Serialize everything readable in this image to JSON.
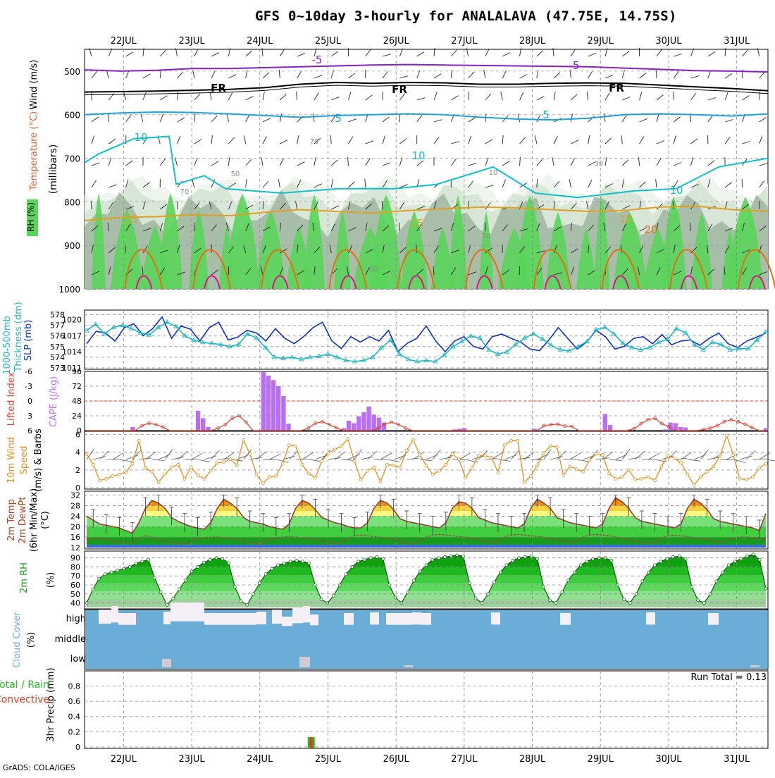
{
  "title": "GFS 0~10day 3-hourly for ANALALAVA (47.75E, 14.75S)",
  "credit": "GrADS: COLA/IGES",
  "dates": [
    "22JUL",
    "23JUL",
    "24JUL",
    "25JUL",
    "26JUL",
    "27JUL",
    "28JUL",
    "29JUL",
    "30JUL",
    "31JUL"
  ],
  "colors": {
    "rh_green": "#5ad45a",
    "rh_mid": "#9ab09a",
    "rh_light": "#d8e6d8",
    "t_minus5": "#8a1fc2",
    "t_fr": "#000000",
    "t_5": "#1fa0e0",
    "t_10": "#12c0c8",
    "t_15": "#e0a020",
    "t_20": "#e07010",
    "t_25": "#e0108a",
    "slp": "#1030c0",
    "thick": "#20b8c0",
    "li": "#e04030",
    "cape": "#b86ff0",
    "wind10": "#e09018",
    "temp": "#904030",
    "rh2m": "#12a012",
    "cloud": "#6aaed8",
    "precip_total": "#20c020",
    "precip_conv": "#e04020"
  },
  "chart_data": [
    {
      "type": "heatmap",
      "panel": "upper-air",
      "ylabel": "(millibars)",
      "side_labels": [
        "RH (%)",
        "Temperature (°C)",
        "Wind (m/s)"
      ],
      "y_ticks": [
        500,
        600,
        700,
        800,
        900,
        1000
      ],
      "ylim": [
        450,
        1000
      ],
      "contour_labels": [
        "-5",
        "-5",
        "FR",
        "FR",
        "FR",
        "5",
        "5",
        "10",
        "10",
        "10",
        "15",
        "15",
        "15",
        "20",
        "10",
        "30",
        "50",
        "50",
        "50",
        "70",
        "70"
      ],
      "series": [
        {
          "name": "-5",
          "y": [
            497,
            500,
            498,
            494,
            494,
            492,
            490,
            488,
            486,
            485,
            486,
            487,
            488,
            489,
            490,
            493,
            496,
            499,
            500,
            502
          ]
        },
        {
          "name": "FR",
          "y": [
            548,
            547,
            546,
            544,
            542,
            538,
            530,
            526,
            528,
            526,
            527,
            530,
            530,
            528,
            527,
            528,
            532,
            536,
            540,
            545
          ]
        },
        {
          "name": "5",
          "y": [
            600,
            596,
            594,
            595,
            598,
            602,
            606,
            602,
            600,
            598,
            600,
            606,
            610,
            612,
            608,
            600,
            598,
            600,
            603,
            598
          ]
        },
        {
          "name": "15",
          "y": [
            843,
            836,
            834,
            830,
            832,
            824,
            818,
            822,
            826,
            820,
            816,
            812,
            814,
            818,
            822,
            820,
            812,
            810,
            818,
            822
          ]
        }
      ]
    },
    {
      "type": "line",
      "panel": "slp-thickness",
      "ylabel": "SLP (mb)",
      "ylabel2": "Thickness (dm)",
      "ylabel2_main": "1000-500mb",
      "y_ticks_left": [
        573,
        574,
        575,
        576,
        577,
        578
      ],
      "y_ticks_right": [
        1020,
        1017,
        1014,
        1011
      ],
      "series": [
        {
          "name": "SLP",
          "values": [
            1015.5,
            1017.8,
            1017.5,
            1016.0,
            1018.5,
            1019.2,
            1017.0,
            1018.3,
            1020.5,
            1016.5,
            1018.8,
            1018.2,
            1016.0,
            1018.5,
            1019.5,
            1016.2,
            1016.7,
            1018.0,
            1017.5,
            1016.0,
            1018.3,
            1016.5,
            1015.5,
            1016.8,
            1018.5,
            1019.5,
            1016.0,
            1014.6,
            1016.8,
            1015.8,
            1016.8,
            1016.0,
            1018.0,
            1014.0,
            1015.6,
            1016.5,
            1018.8,
            1016.0,
            1014.0,
            1016.0,
            1016.8,
            1015.0,
            1014.5,
            1016.8,
            1017.3,
            1016.5,
            1015.8,
            1014.5,
            1014.2,
            1016.2,
            1018.5,
            1016.5,
            1014.5,
            1015.8,
            1018.0,
            1016.8,
            1014.5,
            1015.0,
            1016.5,
            1016.8,
            1015.5,
            1017.2,
            1015.3,
            1016.0,
            1016.2,
            1015.2,
            1016.5,
            1017.5,
            1015.5,
            1014.8,
            1016.0,
            1016.7,
            1017.5
          ]
        },
        {
          "name": "Thickness",
          "values": [
            576.5,
            577.1,
            576.2,
            576.8,
            577.0,
            576.7,
            576.3,
            576.1,
            576.8,
            577.3,
            576.9,
            576.0,
            575.6,
            575.4,
            575.3,
            575.2,
            575.0,
            575.2,
            576.2,
            575.8,
            574.9,
            574.0,
            573.9,
            574.0,
            573.8,
            574.0,
            574.1,
            574.3,
            574.0,
            573.7,
            573.6,
            573.7,
            574.0,
            574.9,
            575.6,
            574.3,
            573.8,
            573.6,
            573.7,
            573.6,
            574.2,
            575.0,
            575.5,
            576.0,
            575.8,
            574.7,
            574.3,
            574.5,
            575.2,
            575.8,
            576.2,
            575.7,
            575.1,
            574.7,
            574.6,
            575.0,
            575.5,
            576.6,
            576.8,
            576.2,
            575.3,
            574.9,
            574.7,
            574.9,
            575.4,
            575.7,
            576.7,
            576.3,
            575.2,
            574.7,
            575.4,
            575.2,
            574.7,
            574.8,
            574.8,
            575.6,
            576.4
          ]
        }
      ]
    },
    {
      "type": "bar",
      "panel": "cape-li",
      "ylabel": "CAPE (J/kg)",
      "ylabel2": "Lifted Index",
      "y_ticks_cape": [
        0,
        24,
        48,
        72,
        96
      ],
      "y_ticks_li": [
        6,
        3,
        0,
        -3,
        -6
      ],
      "cape_values": [
        0,
        0,
        0,
        0,
        0,
        0,
        0,
        0,
        0,
        6,
        0,
        0,
        0,
        0,
        0,
        0,
        0,
        0,
        0,
        0,
        0,
        0,
        32,
        20,
        6,
        0,
        0,
        0,
        0,
        0,
        0,
        0,
        0,
        0,
        0,
        95,
        89,
        82,
        72,
        56,
        11,
        0,
        0,
        0,
        0,
        0,
        0,
        0,
        0,
        0,
        0,
        4,
        16,
        12,
        23,
        30,
        39,
        26,
        21,
        13,
        0,
        0,
        0,
        0,
        0,
        0,
        0,
        0,
        0,
        0,
        0,
        0,
        0,
        2,
        3,
        4,
        0,
        0,
        0,
        0,
        0,
        0,
        0,
        0,
        0,
        0,
        0,
        0,
        0,
        3,
        1,
        0,
        0,
        0,
        0,
        0,
        0,
        0,
        0,
        0,
        0,
        0,
        0,
        27,
        9,
        0,
        0,
        0,
        0,
        0,
        0,
        0,
        0,
        0,
        0,
        2,
        13,
        12,
        6,
        5,
        0,
        0,
        0,
        0,
        0,
        0,
        0,
        0,
        0,
        0,
        0,
        0,
        0,
        0,
        0,
        4
      ],
      "li_values": [
        6,
        6,
        6,
        6,
        6,
        6,
        6,
        6,
        5,
        4.5,
        4.8,
        5.3,
        6,
        6,
        6,
        6,
        6,
        6,
        6,
        5.5,
        4.8,
        3.5,
        3,
        4.3,
        6,
        6,
        6,
        6,
        6,
        6,
        6,
        6,
        5.5,
        4.5,
        4.2,
        4.8,
        5.4,
        6,
        6,
        6,
        6,
        6,
        5.6,
        4.7,
        4.3,
        4.8,
        5.5,
        6,
        6,
        6,
        6,
        6,
        6,
        6,
        6,
        6,
        6,
        6,
        6,
        6,
        6,
        6,
        6,
        6,
        6,
        6,
        5,
        4.8,
        4.7,
        5.1,
        5.2,
        6,
        6,
        6,
        6,
        6,
        6,
        6,
        6,
        5.6,
        4.6,
        3.8,
        3.5,
        4.6,
        5.2,
        6,
        6,
        6,
        6,
        5.8,
        5.5,
        5.0,
        4.2,
        3.8,
        4.2,
        4.7,
        5.4,
        6,
        6
      ]
    },
    {
      "type": "line",
      "panel": "wind10m",
      "ylabel": "10m Wind Speed (m/s) & Barbs",
      "ylabel_parts": [
        "10m Wind",
        "Speed",
        "(m/s) & Barbs"
      ],
      "y_ticks": [
        0,
        2,
        4,
        6
      ],
      "ylim": [
        0,
        6
      ],
      "series": [
        {
          "name": "Speed",
          "values": [
            3.8,
            2.6,
            0.8,
            1.0,
            1.3,
            1.5,
            1.7,
            2.7,
            5.3,
            2.2,
            1.8,
            0.6,
            1.5,
            2.3,
            2.6,
            1.0,
            2.3,
            1.4,
            1.0,
            1.9,
            2.8,
            2.9,
            3.2,
            2.5,
            5.4,
            3.8,
            1.5,
            0.5,
            1.2,
            1.3,
            2.7,
            4.8,
            4.7,
            2.6,
            1.6,
            1.1,
            3.0,
            3.9,
            4.3,
            4.7,
            5.5,
            3.0,
            0.9,
            1.9,
            2.3,
            0.7,
            2.6,
            2.5,
            2.3,
            4.2,
            5.4,
            3.7,
            2.5,
            1.5,
            1.9,
            2.6,
            3.8,
            3.2,
            1.1,
            2.2,
            3.6,
            3.6,
            3.4,
            1.7,
            4.8,
            5.3,
            5.3,
            0.6,
            1.3,
            2.5,
            3.9,
            4.7,
            4.6,
            1.4,
            2.4,
            2.1,
            1.8,
            3.1,
            3.8,
            3.7,
            1.6,
            1.0,
            1.2,
            2.0,
            0.9,
            1.0,
            1.2,
            0.8,
            2.4,
            3.6,
            3.3,
            2.8,
            1.5,
            0.3,
            1.2,
            1.8,
            2.4,
            3.6,
            5.9,
            3.7,
            1.0,
            0.9,
            1.2,
            2.2,
            2.7
          ]
        }
      ]
    },
    {
      "type": "area",
      "panel": "temp2m",
      "ylabel": "2m Temp 2m DewPt (6hr Min/Max) (°C)",
      "ylabel_parts": [
        "2m Temp",
        "2m DewPt",
        "(6hr Min/Max)",
        "(°C)"
      ],
      "y_ticks": [
        12,
        16,
        20,
        24,
        28,
        32
      ],
      "ylim": [
        12,
        32
      ],
      "temp": [
        24.0,
        22.5,
        21.0,
        20.5,
        20.0,
        19.5,
        18.5,
        17.5,
        21.5,
        27.0,
        30.0,
        29.0,
        27.0,
        23.5,
        22.0,
        21.0,
        20.0,
        19.5,
        19.0,
        21.5,
        27.0,
        30.5,
        29.0,
        27.0,
        23.5,
        22.0,
        21.5,
        21.0,
        20.0,
        19.5,
        19.0,
        21.0,
        27.0,
        30.0,
        29.0,
        26.5,
        23.5,
        22.5,
        21.5,
        21.0,
        20.0,
        19.5,
        19.5,
        21.5,
        27.0,
        30.0,
        29.0,
        26.5,
        23.0,
        22.0,
        21.5,
        21.0,
        20.5,
        20.0,
        19.5,
        21.5,
        27.0,
        29.5,
        29.0,
        27.0,
        23.5,
        22.5,
        21.5,
        21.0,
        20.5,
        20.0,
        19.5,
        21.0,
        27.0,
        30.5,
        29.0,
        27.0,
        23.5,
        22.5,
        21.5,
        21.0,
        20.5,
        20.0,
        19.5,
        21.0,
        27.0,
        31.0,
        29.5,
        27.0,
        23.5,
        22.0,
        21.5,
        21.0,
        20.5,
        20.0,
        19.5,
        21.0,
        27.0,
        30.5,
        29.0,
        26.5,
        23.0,
        22.0,
        21.5,
        21.0,
        20.5,
        20.0,
        19.5,
        18.5,
        25.0
      ],
      "dewpt": [
        15.0,
        15.5,
        15.5,
        15.0,
        14.5,
        14.0,
        13.8,
        14.0,
        15.5,
        16.5,
        16.0,
        15.0,
        14.5,
        14.0,
        13.8,
        13.5,
        14.5,
        15.5,
        15.8,
        16.0,
        16.0,
        15.8,
        15.5,
        15.0,
        14.5,
        14.0,
        13.5,
        13.8,
        15.0,
        15.8,
        16.0,
        16.2,
        16.0,
        15.8,
        15.5,
        15.0,
        14.5,
        14.0,
        13.5,
        14.0,
        15.5,
        16.5,
        16.8,
        16.5,
        16.2,
        16.0,
        15.5,
        15.0,
        14.5,
        14.0,
        13.5,
        14.5,
        16.0,
        16.8,
        17.0,
        16.8,
        16.5,
        16.2,
        16.0,
        15.5,
        15.0,
        14.5,
        14.0,
        14.5,
        16.0,
        16.8,
        17.0,
        16.8,
        16.5,
        16.2,
        16.0,
        15.5,
        15.0,
        14.5,
        14.0,
        14.5,
        16.0,
        16.8,
        17.0,
        16.8,
        16.5,
        16.0,
        15.5,
        15.0,
        14.5,
        14.0,
        13.8,
        14.0,
        15.5,
        16.5,
        16.8,
        16.5,
        16.2,
        15.8,
        15.5,
        15.0,
        14.5,
        14.0,
        14.5,
        15.5,
        16.0,
        16.0,
        15.8,
        15.5,
        15.0
      ]
    },
    {
      "type": "area",
      "panel": "rh2m",
      "ylabel": "2m RH (%)",
      "y_ticks": [
        40,
        50,
        60,
        70,
        80,
        90
      ],
      "ylim": [
        35,
        96
      ],
      "values": [
        40,
        55,
        67,
        72,
        74,
        76,
        78,
        80,
        84,
        86,
        88,
        68,
        52,
        38,
        45,
        55,
        65,
        75,
        80,
        85,
        88,
        90,
        89,
        84,
        58,
        42,
        38,
        50,
        62,
        72,
        78,
        82,
        84,
        86,
        87,
        86,
        84,
        60,
        44,
        40,
        48,
        60,
        72,
        80,
        86,
        88,
        90,
        91,
        89,
        60,
        46,
        40,
        52,
        65,
        75,
        82,
        88,
        90,
        91,
        92,
        93,
        92,
        62,
        45,
        40,
        50,
        63,
        74,
        82,
        87,
        90,
        91,
        92,
        89,
        58,
        43,
        40,
        52,
        65,
        74,
        82,
        86,
        89,
        90,
        90,
        87,
        60,
        44,
        40,
        50,
        64,
        74,
        82,
        86,
        89,
        91,
        92,
        89,
        58,
        43,
        40,
        50,
        64,
        74,
        82,
        86,
        89,
        92,
        94,
        88,
        56
      ]
    },
    {
      "type": "heatmap",
      "panel": "cloud-cover",
      "ylabel": "Cloud Cover (%)",
      "rows": [
        "high",
        "middle",
        "low"
      ]
    },
    {
      "type": "bar",
      "panel": "precip",
      "ylabel": "3hr Precip (mm)",
      "ylabel2": "Total / Rain Convective",
      "ylabel2_parts": [
        "Total / Rain",
        "Convective"
      ],
      "annotation": "Run Total = 0.13",
      "y_ticks": [
        0,
        0.2,
        0.4,
        0.6,
        0.8
      ],
      "ylim": [
        0,
        0.98
      ],
      "bars": [
        {
          "x": "24JUL",
          "total": 0.13,
          "conv": 0.13
        }
      ]
    }
  ]
}
